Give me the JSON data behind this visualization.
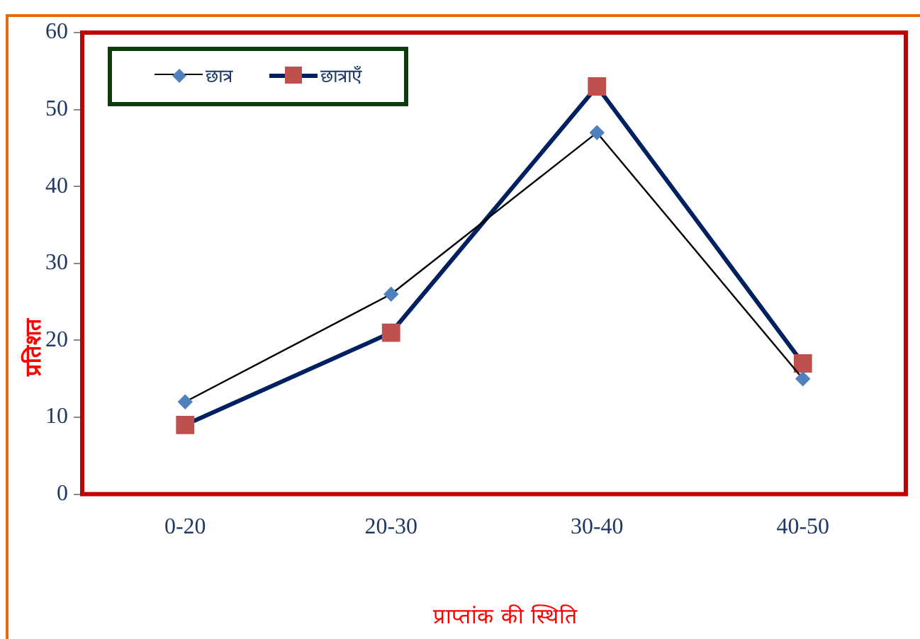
{
  "chart_data": {
    "type": "line",
    "xlabel": "प्राप्तांक की स्थिति",
    "ylabel": "प्रतिशत",
    "categories": [
      "0-20",
      "20-30",
      "30-40",
      "40-50"
    ],
    "series": [
      {
        "name": "छात्र",
        "color": "#000000",
        "colors": [
          "#4f81bd",
          "#4f81bd",
          "#4f81bd",
          "#4f81bd"
        ],
        "marker": "diamond",
        "values": [
          12,
          26,
          47,
          15
        ]
      },
      {
        "name": "छात्राएँ",
        "color": "#002060",
        "colors": [
          "#c0504d",
          "#c0504d",
          "#c0504d",
          "#c0504d"
        ],
        "marker": "square",
        "values": [
          9,
          21,
          53,
          17
        ]
      }
    ],
    "ylim": [
      0,
      60
    ],
    "yticks": [
      0,
      10,
      20,
      30,
      40,
      50,
      60
    ],
    "grid": false,
    "legend": "top left"
  }
}
